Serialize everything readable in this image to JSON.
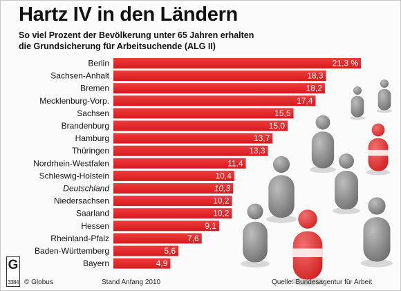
{
  "title": "Hartz IV in den Ländern",
  "subtitle_line1": "So viel Prozent der Bevölkerung unter 65 Jahren erhalten",
  "subtitle_line2": "die Grundsicherung für Arbeitsuchende (ALG II)",
  "footer": {
    "publisher": "© Globus",
    "date": "Stand Anfang 2010",
    "source": "Quelle: Bundesagentur für Arbeit",
    "logo_letter": "G",
    "logo_number": "3384"
  },
  "colors": {
    "bar": "#d71a1f",
    "bar_highlight": "#ef3b3b",
    "figure_grey": "#6e6e6e",
    "figure_red": "#d32020"
  },
  "chart_data": {
    "type": "bar",
    "orientation": "horizontal",
    "categories": [
      "Berlin",
      "Sachsen-Anhalt",
      "Bremen",
      "Mecklenburg-Vorp.",
      "Sachsen",
      "Brandenburg",
      "Hamburg",
      "Thüringen",
      "Nordrhein-Westfalen",
      "Schleswig-Holstein",
      "Deutschland",
      "Niedersachsen",
      "Saarland",
      "Hessen",
      "Rheinland-Pfalz",
      "Baden-Württemberg",
      "Bayern"
    ],
    "values": [
      21.3,
      18.3,
      18.2,
      17.4,
      15.5,
      15.0,
      13.7,
      13.3,
      11.4,
      10.4,
      10.3,
      10.2,
      10.2,
      9.1,
      7.6,
      5.6,
      4.9
    ],
    "value_labels": [
      "21,3 %",
      "18,3",
      "18,2",
      "17,4",
      "15,5",
      "15,0",
      "13,7",
      "13,3",
      "11,4",
      "10,4",
      "10,3",
      "10,2",
      "10,2",
      "9,1",
      "7,6",
      "5,6",
      "4,9"
    ],
    "emphasized_category": "Deutschland",
    "unit": "%",
    "xlim": [
      0,
      21.3
    ],
    "grid": false,
    "legend": "none"
  }
}
